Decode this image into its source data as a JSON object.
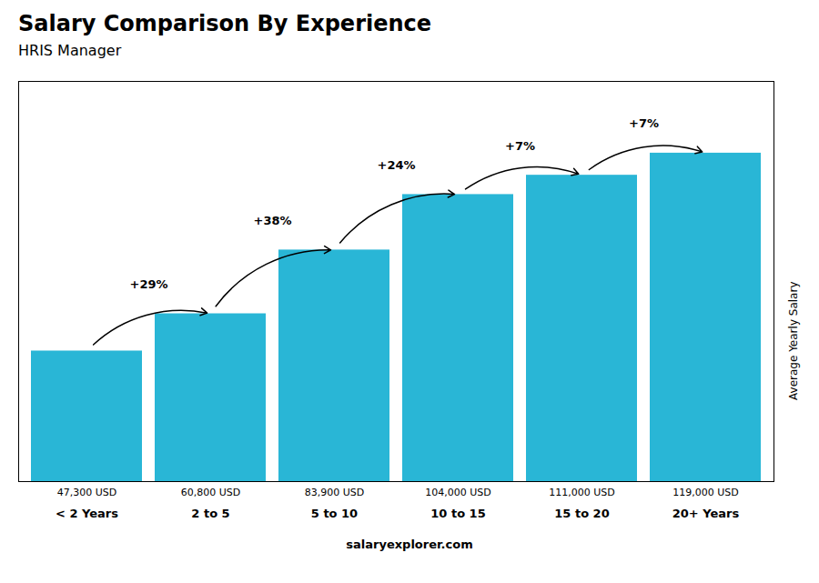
{
  "chart_data": {
    "type": "bar",
    "title": "Salary Comparison By Experience",
    "subtitle": "HRIS Manager",
    "categories": [
      "< 2 Years",
      "2 to 5",
      "5 to 10",
      "10 to 15",
      "15 to 20",
      "20+ Years"
    ],
    "values": [
      47300,
      60800,
      83900,
      104000,
      111000,
      119000
    ],
    "value_labels": [
      "47,300 USD",
      "60,800 USD",
      "83,900 USD",
      "104,000 USD",
      "111,000 USD",
      "119,000 USD"
    ],
    "data_labels": true,
    "color": "#29b6d6",
    "ylabel": "Average Yearly Salary",
    "ylim": [
      0,
      145000
    ],
    "yticks": [],
    "tick_labels": "x",
    "grid": false,
    "annotations": [
      "+29%",
      "+38%",
      "+24%",
      "+7%",
      "+7%"
    ],
    "caption": "salaryexplorer.com"
  }
}
